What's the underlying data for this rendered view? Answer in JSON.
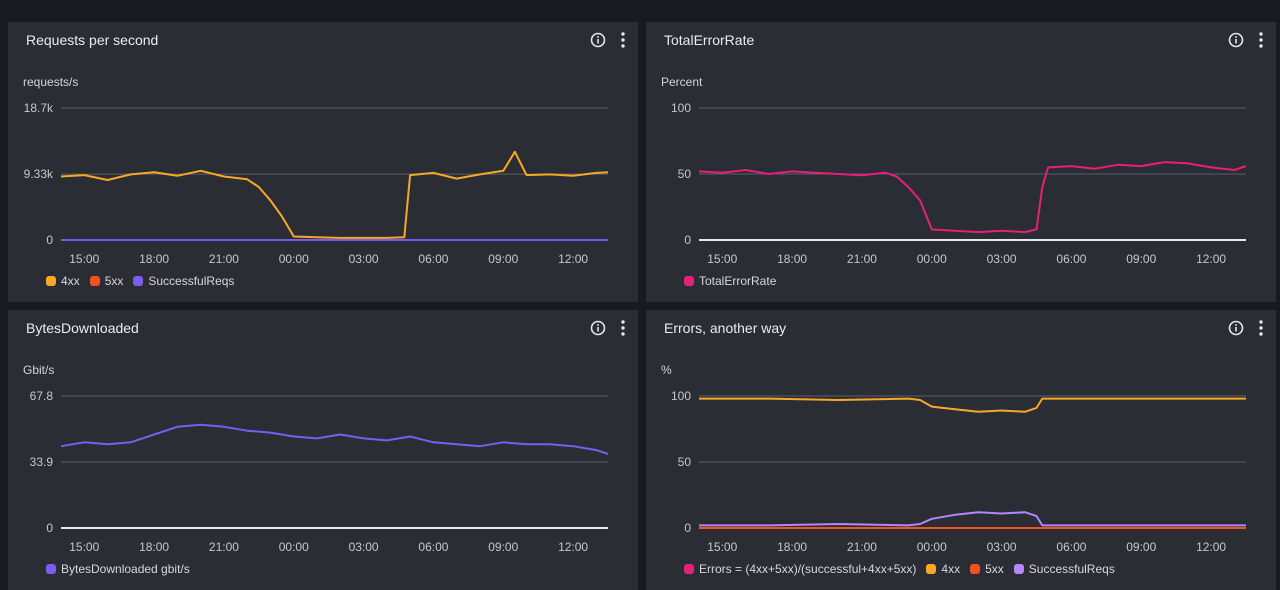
{
  "icons": {
    "info": "info-circle-icon",
    "menu": "vertical-dots-icon"
  },
  "chart_data": [
    {
      "type": "line",
      "title": "Requests per second",
      "ylabel": "requests/s",
      "ylim": [
        0,
        18700
      ],
      "y_ticks": [
        0,
        9330,
        18700
      ],
      "y_tick_labels": [
        "0",
        "9.33k",
        "18.7k"
      ],
      "x_range": [
        "14:00",
        "13:30"
      ],
      "x_tick_labels": [
        "15:00",
        "18:00",
        "21:00",
        "00:00",
        "03:00",
        "06:00",
        "09:00",
        "12:00"
      ],
      "series": [
        {
          "name": "4xx",
          "color": "#f9a825",
          "x": [
            "14:00",
            "15:00",
            "16:00",
            "17:00",
            "18:00",
            "19:00",
            "20:00",
            "21:00",
            "22:00",
            "22:30",
            "23:00",
            "23:30",
            "00:00",
            "01:00",
            "02:00",
            "03:00",
            "04:00",
            "04:45",
            "05:00",
            "06:00",
            "07:00",
            "08:00",
            "09:00",
            "09:30",
            "10:00",
            "11:00",
            "12:00",
            "13:00",
            "13:30"
          ],
          "values": [
            9000,
            9200,
            8500,
            9300,
            9600,
            9100,
            9800,
            9000,
            8600,
            7500,
            5600,
            3300,
            500,
            400,
            300,
            300,
            300,
            400,
            9200,
            9500,
            8700,
            9300,
            9800,
            12500,
            9200,
            9300,
            9100,
            9500,
            9600
          ]
        },
        {
          "name": "5xx",
          "color": "#f4511e",
          "x": [
            "14:00",
            "13:30"
          ],
          "values": [
            0,
            0
          ]
        },
        {
          "name": "SuccessfulReqs",
          "color": "#7b5cf0",
          "x": [
            "14:00",
            "13:30"
          ],
          "values": [
            0,
            0
          ]
        }
      ]
    },
    {
      "type": "line",
      "title": "TotalErrorRate",
      "ylabel": "Percent",
      "ylim": [
        0,
        100
      ],
      "y_ticks": [
        0,
        50,
        100
      ],
      "y_tick_labels": [
        "0",
        "50",
        "100"
      ],
      "x_range": [
        "14:00",
        "13:30"
      ],
      "x_tick_labels": [
        "15:00",
        "18:00",
        "21:00",
        "00:00",
        "03:00",
        "06:00",
        "09:00",
        "12:00"
      ],
      "series": [
        {
          "name": "TotalErrorRate",
          "color": "#e91e78",
          "x": [
            "14:00",
            "15:00",
            "16:00",
            "17:00",
            "18:00",
            "19:00",
            "20:00",
            "21:00",
            "22:00",
            "22:30",
            "23:00",
            "23:30",
            "00:00",
            "01:00",
            "02:00",
            "03:00",
            "04:00",
            "04:30",
            "04:45",
            "05:00",
            "06:00",
            "07:00",
            "08:00",
            "09:00",
            "10:00",
            "11:00",
            "12:00",
            "13:00",
            "13:30"
          ],
          "values": [
            52,
            51,
            53,
            50,
            52,
            51,
            50,
            49,
            51,
            48,
            40,
            30,
            8,
            7,
            6,
            7,
            6,
            8,
            40,
            55,
            56,
            54,
            57,
            56,
            59,
            58,
            55,
            53,
            56
          ]
        }
      ]
    },
    {
      "type": "line",
      "title": "BytesDownloaded",
      "ylabel": "Gbit/s",
      "ylim": [
        0,
        67.8
      ],
      "y_ticks": [
        0,
        33.9,
        67.8
      ],
      "y_tick_labels": [
        "0",
        "33.9",
        "67.8"
      ],
      "x_range": [
        "14:00",
        "13:30"
      ],
      "x_tick_labels": [
        "15:00",
        "18:00",
        "21:00",
        "00:00",
        "03:00",
        "06:00",
        "09:00",
        "12:00"
      ],
      "series": [
        {
          "name": "BytesDownloaded gbit/s",
          "color": "#7b5cf0",
          "x": [
            "14:00",
            "15:00",
            "16:00",
            "17:00",
            "18:00",
            "19:00",
            "20:00",
            "21:00",
            "22:00",
            "23:00",
            "00:00",
            "01:00",
            "02:00",
            "03:00",
            "04:00",
            "05:00",
            "06:00",
            "07:00",
            "08:00",
            "09:00",
            "10:00",
            "11:00",
            "12:00",
            "13:00",
            "13:30"
          ],
          "values": [
            42,
            44,
            43,
            44,
            48,
            52,
            53,
            52,
            50,
            49,
            47,
            46,
            48,
            46,
            45,
            47,
            44,
            43,
            42,
            44,
            43,
            43,
            42,
            40,
            38
          ]
        }
      ]
    },
    {
      "type": "line",
      "title": "Errors, another way",
      "ylabel": "%",
      "ylim": [
        0,
        100
      ],
      "y_ticks": [
        0,
        50,
        100
      ],
      "y_tick_labels": [
        "0",
        "50",
        "100"
      ],
      "x_range": [
        "14:00",
        "13:30"
      ],
      "x_tick_labels": [
        "15:00",
        "18:00",
        "21:00",
        "00:00",
        "03:00",
        "06:00",
        "09:00",
        "12:00"
      ],
      "series": [
        {
          "name": "Errors = (4xx+5xx)/(successful+4xx+5xx)",
          "color": "#e91e78",
          "x": [
            "14:00",
            "13:30"
          ],
          "values": [
            0,
            0
          ]
        },
        {
          "name": "4xx",
          "color": "#f9a825",
          "x": [
            "14:00",
            "17:00",
            "20:00",
            "23:00",
            "23:30",
            "00:00",
            "01:00",
            "02:00",
            "03:00",
            "04:00",
            "04:30",
            "04:45",
            "06:00",
            "09:00",
            "12:00",
            "13:30"
          ],
          "values": [
            98,
            98,
            97,
            98,
            97,
            92,
            90,
            88,
            89,
            88,
            91,
            98,
            98,
            98,
            98,
            98
          ]
        },
        {
          "name": "5xx",
          "color": "#f4511e",
          "x": [
            "14:00",
            "13:30"
          ],
          "values": [
            0,
            0
          ]
        },
        {
          "name": "SuccessfulReqs",
          "color": "#b388ff",
          "x": [
            "14:00",
            "17:00",
            "20:00",
            "23:00",
            "23:30",
            "00:00",
            "01:00",
            "02:00",
            "03:00",
            "04:00",
            "04:30",
            "04:45",
            "06:00",
            "09:00",
            "12:00",
            "13:30"
          ],
          "values": [
            2,
            2,
            3,
            2,
            3,
            7,
            10,
            12,
            11,
            12,
            9,
            2,
            2,
            2,
            2,
            2
          ]
        }
      ]
    }
  ]
}
